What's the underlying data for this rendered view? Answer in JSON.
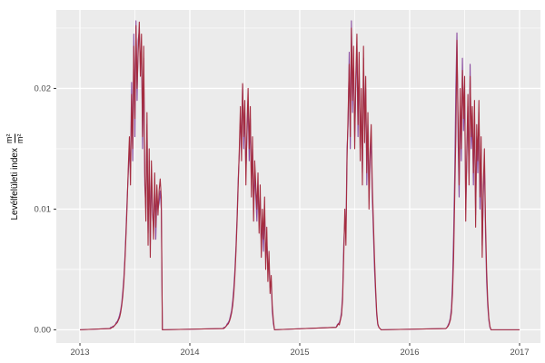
{
  "chart_data": {
    "type": "line",
    "title": "",
    "xlabel": "",
    "ylabel": {
      "text": "Levélfelületi index",
      "unit_numerator": "m²",
      "unit_denominator": "m²"
    },
    "legend": "none",
    "grid": true,
    "panel_background": "#EBEBEB",
    "grid_major_color": "#FFFFFF",
    "grid_minor_color": "#FFFFFF",
    "tick_label_color": "#4D4D4D",
    "tick_mark_color": "#333333",
    "xlim": [
      2012.785,
      2017.19
    ],
    "ylim": [
      -0.0011,
      0.0265
    ],
    "x_ticks": [
      {
        "value": 2013,
        "label": "2013"
      },
      {
        "value": 2014,
        "label": "2014"
      },
      {
        "value": 2015,
        "label": "2015"
      },
      {
        "value": 2016,
        "label": "2016"
      },
      {
        "value": 2017,
        "label": "2017"
      }
    ],
    "y_ticks": [
      {
        "value": 0.0,
        "label": "0.00"
      },
      {
        "value": 0.01,
        "label": "0.01"
      },
      {
        "value": 0.02,
        "label": "0.02"
      }
    ],
    "x_minor": [
      2013.5,
      2014.5,
      2015.5,
      2016.5
    ],
    "y_minor": [
      0.005,
      0.015,
      0.025
    ],
    "x_start": 2013.0,
    "x_end": 2017.0,
    "value_scale": 0.0001,
    "series": [
      {
        "name": "series-purple",
        "color": "#8B4CA0",
        "seasons": [
          {
            "x0": 2013.27,
            "dx": 0.01,
            "values": [
              1,
              2,
              2,
              3,
              3,
              4,
              6,
              7,
              9,
              12,
              16,
              22,
              32,
              44,
              62,
              85,
              110,
              130,
              150,
              135,
              205,
              140,
              245,
              160,
              256,
              190,
              240,
              248,
              220,
              235,
              150,
              225,
              120,
              100,
              170,
              80,
              140,
              70,
              130,
              95,
              85,
              120,
              75,
              110,
              100,
              105,
              115,
              100,
              0
            ]
          },
          {
            "x0": 2014.3,
            "dx": 0.01,
            "values": [
              1,
              2,
              2,
              3,
              5,
              6,
              8,
              12,
              16,
              24,
              35,
              50,
              70,
              95,
              125,
              145,
              175,
              155,
              203,
              150,
              180,
              130,
              160,
              190,
              140,
              175,
              120,
              150,
              100,
              130,
              110,
              90,
              120,
              90,
              110,
              70,
              90,
              65,
              100,
              60,
              75,
              50,
              55,
              35,
              40,
              15,
              5,
              0
            ]
          },
          {
            "x0": 2015.33,
            "dx": 0.01,
            "values": [
              2,
              4,
              5,
              6,
              9,
              15,
              30,
              70,
              90,
              80,
              150,
              170,
              230,
              150,
              256,
              180,
              225,
              160,
              200,
              235,
              160,
              220,
              150,
              190,
              130,
              225,
              165,
              200,
              120,
              170,
              110,
              140,
              160,
              110,
              80,
              50,
              30,
              12,
              4,
              2,
              1,
              0
            ]
          },
          {
            "x0": 2016.33,
            "dx": 0.01,
            "values": [
              1,
              2,
              4,
              6,
              10,
              18,
              40,
              80,
              130,
              200,
              246,
              160,
              110,
              190,
              140,
              225,
              165,
              195,
              100,
              140,
              185,
              130,
              220,
              150,
              175,
              120,
              180,
              95,
              160,
              130,
              180,
              100,
              150,
              70,
              110,
              140,
              80,
              40,
              20,
              8,
              2,
              0,
              0,
              0
            ]
          }
        ]
      },
      {
        "name": "series-red",
        "color": "#A52C3F",
        "seasons": [
          {
            "x0": 2013.27,
            "dx": 0.01,
            "values": [
              1,
              1,
              2,
              2,
              3,
              4,
              5,
              6,
              8,
              10,
              14,
              20,
              28,
              40,
              58,
              80,
              105,
              135,
              160,
              120,
              195,
              150,
              235,
              175,
              252,
              200,
              230,
              255,
              210,
              245,
              160,
              235,
              130,
              90,
              180,
              70,
              150,
              60,
              140,
              105,
              75,
              130,
              85,
              120,
              95,
              115,
              125,
              110,
              0
            ]
          },
          {
            "x0": 2014.3,
            "dx": 0.01,
            "values": [
              1,
              1,
              2,
              3,
              4,
              5,
              7,
              10,
              14,
              20,
              30,
              45,
              65,
              90,
              120,
              150,
              185,
              140,
              204,
              160,
              190,
              120,
              170,
              200,
              150,
              185,
              110,
              160,
              90,
              140,
              120,
              100,
              130,
              80,
              120,
              60,
              100,
              75,
              110,
              50,
              85,
              40,
              65,
              30,
              45,
              20,
              8,
              0
            ]
          },
          {
            "x0": 2015.33,
            "dx": 0.01,
            "values": [
              2,
              3,
              5,
              4,
              8,
              12,
              25,
              60,
              100,
              70,
              140,
              180,
              220,
              160,
              250,
              190,
              235,
              150,
              210,
              245,
              170,
              230,
              140,
              200,
              120,
              235,
              155,
              210,
              130,
              180,
              100,
              150,
              170,
              120,
              90,
              60,
              35,
              15,
              5,
              2,
              1,
              0
            ]
          },
          {
            "x0": 2016.33,
            "dx": 0.01,
            "values": [
              1,
              2,
              3,
              5,
              8,
              14,
              30,
              60,
              110,
              160,
              240,
              180,
              120,
              200,
              150,
              215,
              175,
              210,
              90,
              150,
              195,
              120,
              210,
              160,
              185,
              130,
              190,
              85,
              170,
              140,
              190,
              110,
              160,
              60,
              120,
              150,
              90,
              50,
              25,
              10,
              3,
              0,
              0,
              0
            ]
          }
        ]
      }
    ]
  }
}
